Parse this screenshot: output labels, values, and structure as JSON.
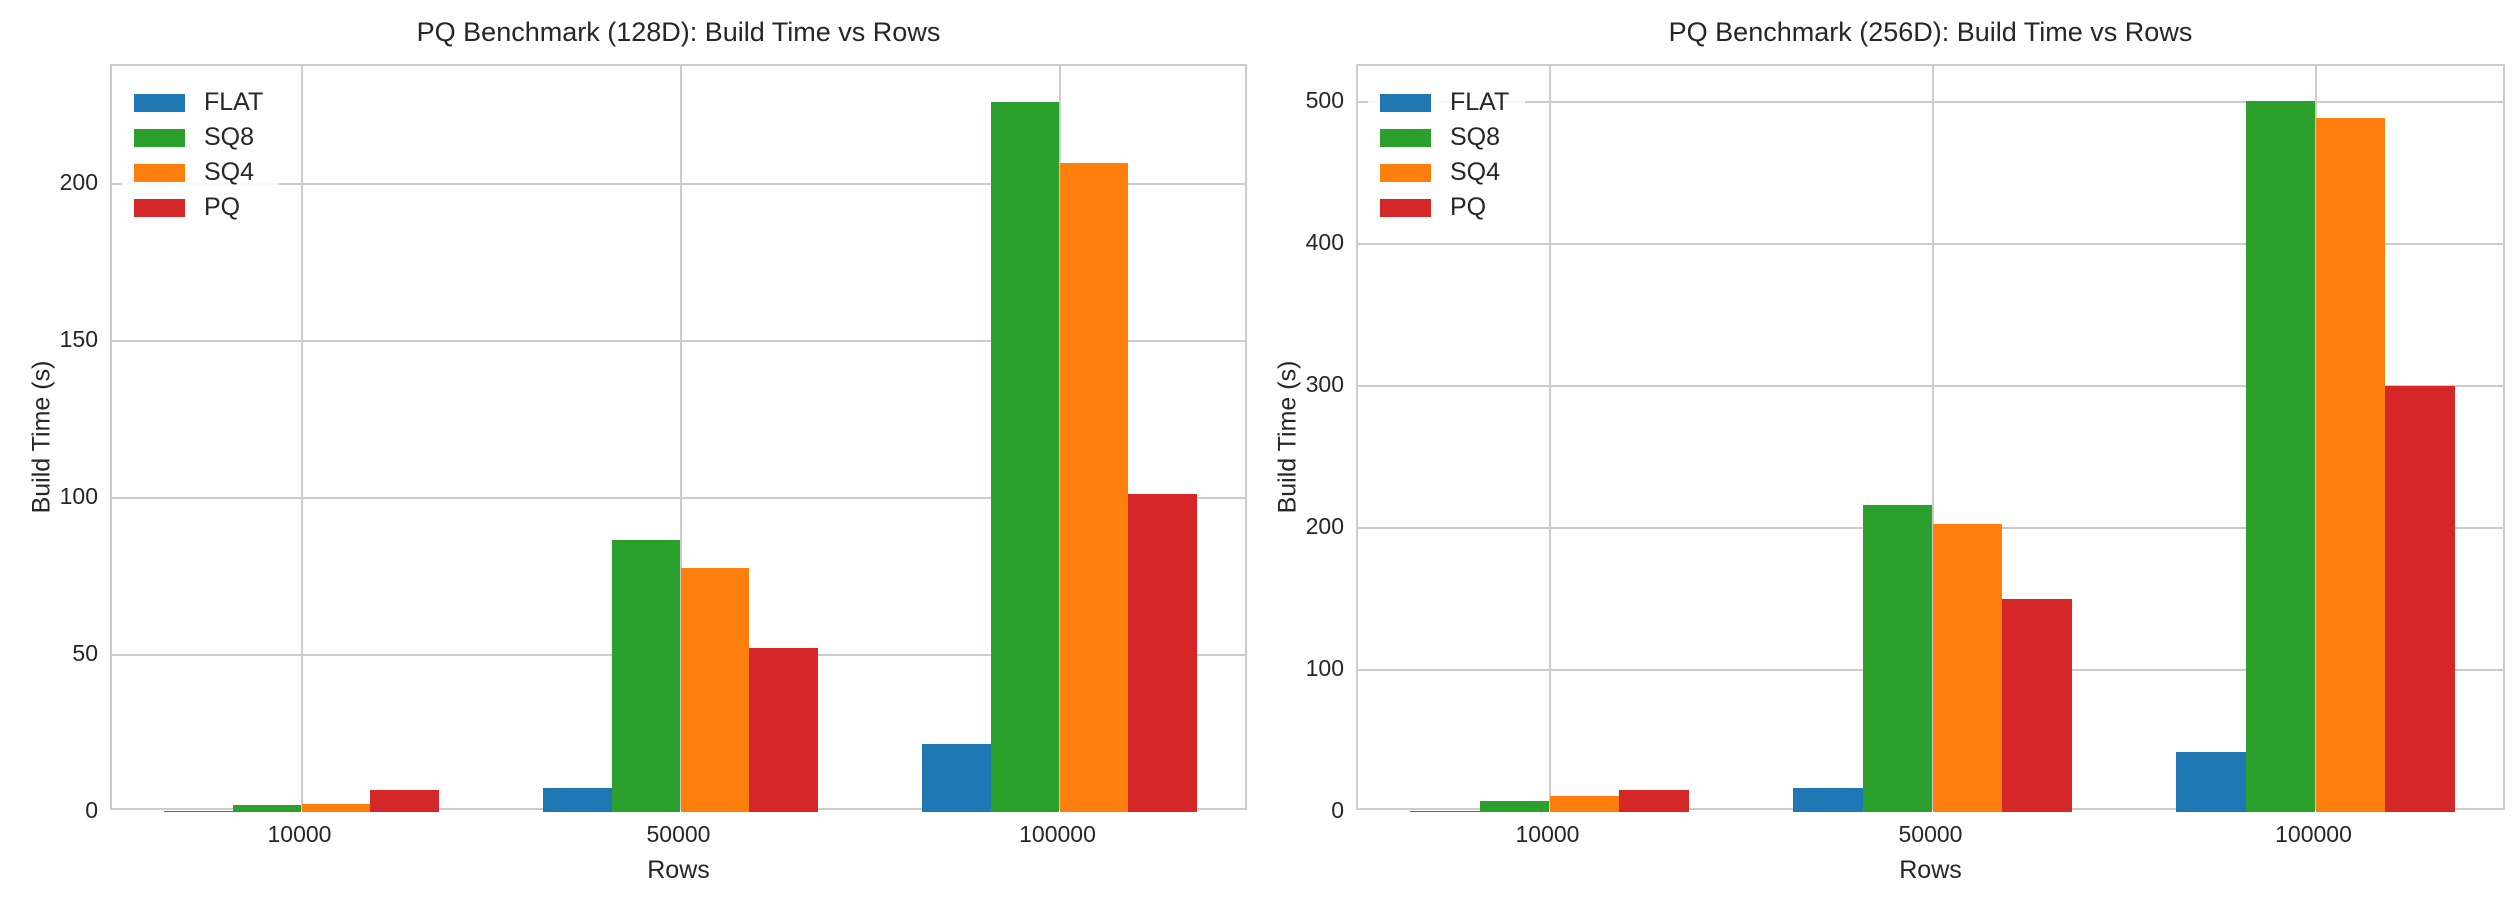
{
  "figure": {
    "background_color": "#ffffff",
    "text_color": "#262626",
    "grid_color": "#cccccc"
  },
  "chart_data": [
    {
      "type": "bar",
      "title": "PQ Benchmark (128D): Build Time vs Rows",
      "xlabel": "Rows",
      "ylabel": "Build Time (s)",
      "categories": [
        "10000",
        "50000",
        "100000"
      ],
      "series": [
        {
          "name": "FLAT",
          "color": "#1f77b4",
          "values": [
            0.4,
            7.7,
            21.7
          ]
        },
        {
          "name": "SQ8",
          "color": "#2ca02c",
          "values": [
            2.1,
            86.5,
            226.1
          ]
        },
        {
          "name": "SQ4",
          "color": "#ff7f0e",
          "values": [
            2.5,
            77.5,
            206.5
          ]
        },
        {
          "name": "PQ",
          "color": "#d62728",
          "values": [
            7.1,
            52.3,
            101.3
          ]
        }
      ],
      "ylim": [
        0,
        237.4
      ],
      "yticks": [
        0,
        50,
        100,
        150,
        200
      ],
      "grid": true,
      "legend_position": "upper-left"
    },
    {
      "type": "bar",
      "title": "PQ Benchmark (256D): Build Time vs Rows",
      "xlabel": "Rows",
      "ylabel": "Build Time (s)",
      "categories": [
        "10000",
        "50000",
        "100000"
      ],
      "series": [
        {
          "name": "FLAT",
          "color": "#1f77b4",
          "values": [
            0.9,
            17.0,
            42.5
          ]
        },
        {
          "name": "SQ8",
          "color": "#2ca02c",
          "values": [
            8.0,
            216.0,
            500.7
          ]
        },
        {
          "name": "SQ4",
          "color": "#ff7f0e",
          "values": [
            11.0,
            203.0,
            489.0
          ]
        },
        {
          "name": "PQ",
          "color": "#d62728",
          "values": [
            15.5,
            150.0,
            300.0
          ]
        }
      ],
      "ylim": [
        0,
        525.7
      ],
      "yticks": [
        0,
        100,
        200,
        300,
        400,
        500
      ],
      "grid": true,
      "legend_position": "upper-left"
    }
  ]
}
